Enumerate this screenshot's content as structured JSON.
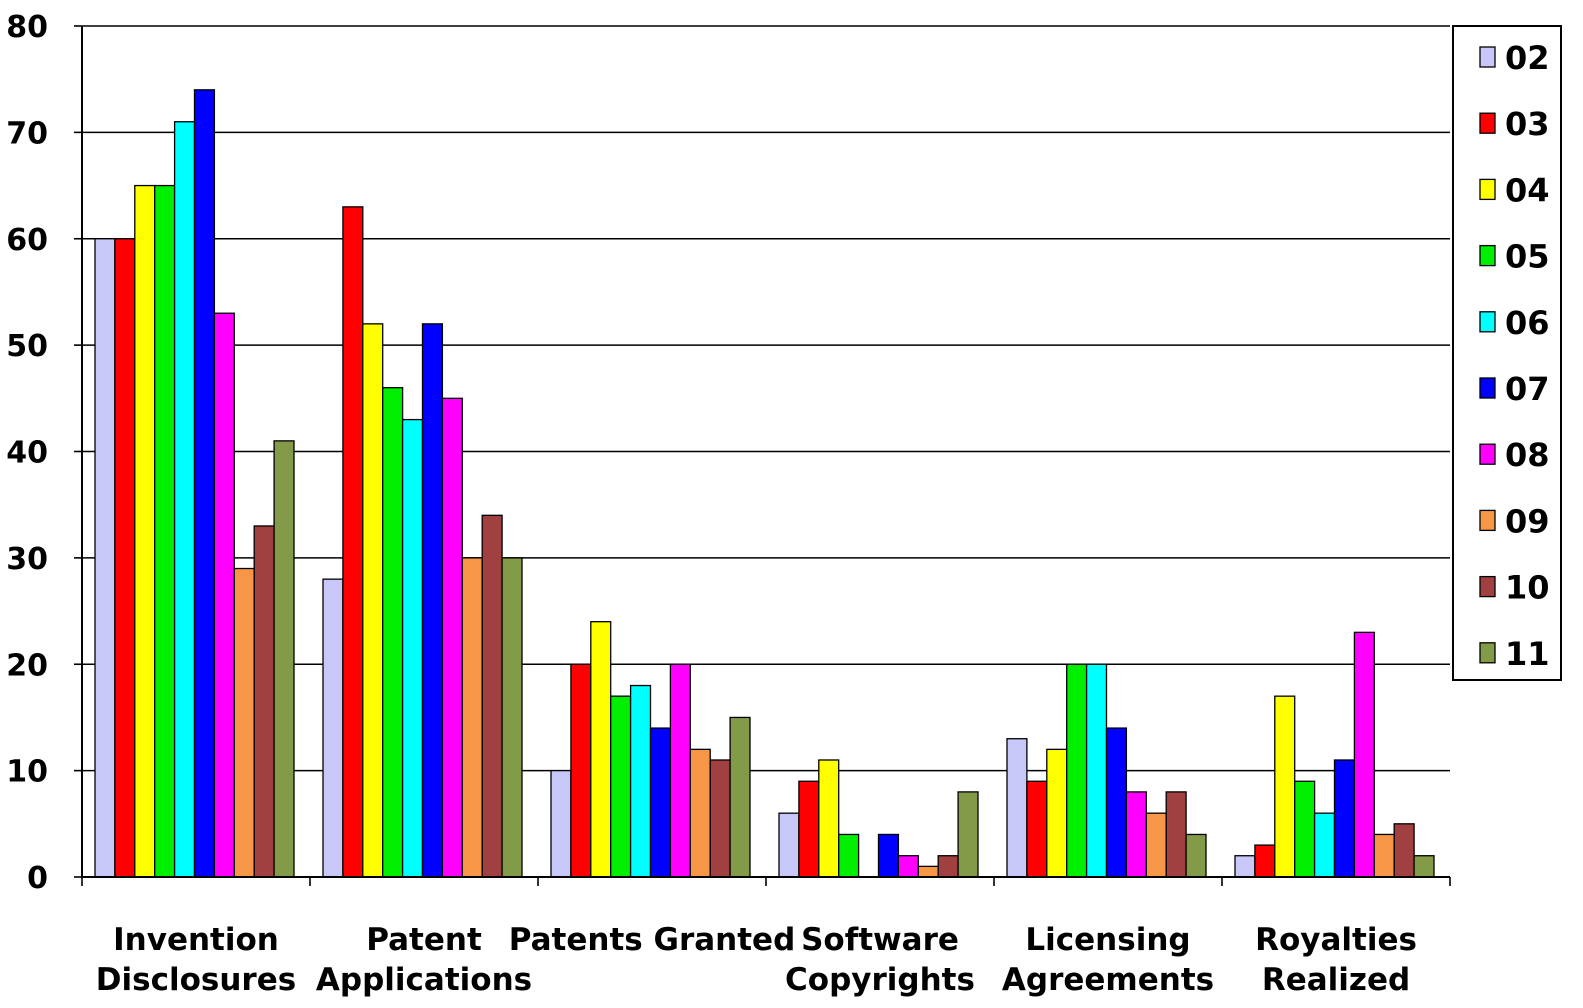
{
  "chart_data": {
    "type": "bar",
    "title": "",
    "xlabel": "",
    "ylabel": "",
    "ylim": [
      0,
      80
    ],
    "yticks": [
      0,
      10,
      20,
      30,
      40,
      50,
      60,
      70,
      80
    ],
    "grid": true,
    "legend_position": "right",
    "categories": [
      [
        "Invention",
        "Disclosures"
      ],
      [
        "Patent",
        "Applications"
      ],
      [
        "Patents Granted"
      ],
      [
        "Software",
        "Copyrights"
      ],
      [
        "Licensing",
        "Agreements"
      ],
      [
        "Royalties",
        "Realized"
      ]
    ],
    "series": [
      {
        "name": "02",
        "color": "#c8c8f8",
        "values": [
          60,
          28,
          10,
          6,
          13,
          2
        ]
      },
      {
        "name": "03",
        "color": "#ff0000",
        "values": [
          60,
          63,
          20,
          9,
          9,
          3
        ]
      },
      {
        "name": "04",
        "color": "#ffff00",
        "values": [
          65,
          52,
          24,
          11,
          12,
          17
        ]
      },
      {
        "name": "05",
        "color": "#00ee00",
        "values": [
          65,
          46,
          17,
          4,
          20,
          9
        ]
      },
      {
        "name": "06",
        "color": "#00ffff",
        "values": [
          71,
          43,
          18,
          0,
          20,
          6
        ]
      },
      {
        "name": "07",
        "color": "#0000ff",
        "values": [
          74,
          52,
          14,
          4,
          14,
          11
        ]
      },
      {
        "name": "08",
        "color": "#ff00ff",
        "values": [
          53,
          45,
          20,
          2,
          8,
          23
        ]
      },
      {
        "name": "09",
        "color": "#f79646",
        "values": [
          29,
          30,
          12,
          1,
          6,
          4
        ]
      },
      {
        "name": "10",
        "color": "#a04040",
        "values": [
          33,
          34,
          11,
          2,
          8,
          5
        ]
      },
      {
        "name": "11",
        "color": "#839a48",
        "values": [
          41,
          30,
          15,
          8,
          4,
          2
        ]
      }
    ]
  }
}
